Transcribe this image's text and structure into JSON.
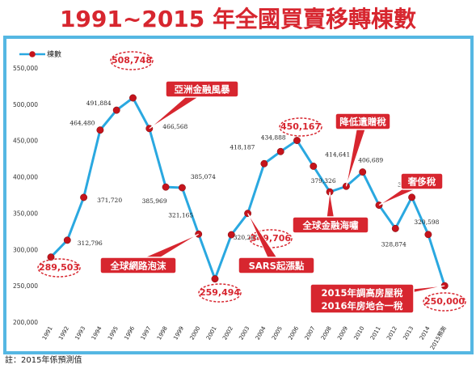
{
  "page": {
    "title": "1991~2015 年全國買賣移轉棟數",
    "note": "註：2015年係預測值"
  },
  "chart_data": {
    "type": "line",
    "title": "1991~2015 年全國買賣移轉棟數",
    "legend": {
      "label": "棟數",
      "placement": "top-left"
    },
    "categories": [
      "1991",
      "1992",
      "1993",
      "1994",
      "1995",
      "1996",
      "1997",
      "1998",
      "1999",
      "2000",
      "2001",
      "2002",
      "2003",
      "2004",
      "2005",
      "2006",
      "2007",
      "2008",
      "2009",
      "2010",
      "2011",
      "2012",
      "2013",
      "2014",
      "2015預測"
    ],
    "series": [
      {
        "name": "棟數",
        "values": [
          289503,
          312796,
          371720,
          464480,
          491884,
          508748,
          466568,
          385969,
          385074,
          321165,
          259494,
          320285,
          349706,
          418187,
          434888,
          450167,
          414641,
          379326,
          387000,
          406689,
          361000,
          328874,
          371892,
          320598,
          250000
        ]
      }
    ],
    "value_labels": [
      {
        "i": 0,
        "text": "289,503",
        "highlight": true
      },
      {
        "i": 1,
        "text": "312,796"
      },
      {
        "i": 2,
        "text": "371,720"
      },
      {
        "i": 3,
        "text": "464,480"
      },
      {
        "i": 4,
        "text": "491,884"
      },
      {
        "i": 5,
        "text": "508,748",
        "highlight": true
      },
      {
        "i": 6,
        "text": "466,568"
      },
      {
        "i": 7,
        "text": "385,969"
      },
      {
        "i": 8,
        "text": "385,074"
      },
      {
        "i": 9,
        "text": "321,165"
      },
      {
        "i": 10,
        "text": "259,494",
        "highlight": true
      },
      {
        "i": 11,
        "text": "320,285"
      },
      {
        "i": 12,
        "text": "349,706",
        "highlight": true
      },
      {
        "i": 13,
        "text": "418,187"
      },
      {
        "i": 14,
        "text": "434,888"
      },
      {
        "i": 15,
        "text": "450,167",
        "highlight": true
      },
      {
        "i": 16,
        "text": "414,641"
      },
      {
        "i": 17,
        "text": "379,326"
      },
      {
        "i": 19,
        "text": "406,689"
      },
      {
        "i": 21,
        "text": "328,874"
      },
      {
        "i": 22,
        "text": "371,892"
      },
      {
        "i": 23,
        "text": "320,598"
      },
      {
        "i": 24,
        "text": "250,000",
        "highlight": true
      }
    ],
    "annotations": [
      {
        "i": 6,
        "text": "亞洲金融風暴"
      },
      {
        "i": 9,
        "text": "全球網路泡沫"
      },
      {
        "i": 12,
        "text": "SARS起漲點"
      },
      {
        "i": 17,
        "text": "全球金融海嘯"
      },
      {
        "i": 18,
        "text": "降低遺贈稅"
      },
      {
        "i": 20,
        "text": "奢侈稅"
      },
      {
        "i": 24,
        "text": "2015年調高房屋稅",
        "text2": "2016年房地合一稅"
      }
    ],
    "y_ticks": [
      "200,000",
      "250,000",
      "300,000",
      "350,000",
      "400,000",
      "450,000",
      "500,000",
      "550,000"
    ],
    "ylim": [
      200000,
      550000
    ],
    "grid": false,
    "colors": {
      "line": "#2aa8e0",
      "marker": "#c5141c",
      "annotation": "#d7262f",
      "highlight_ellipse": "#d7262f",
      "frame": "#55b7e3"
    }
  }
}
